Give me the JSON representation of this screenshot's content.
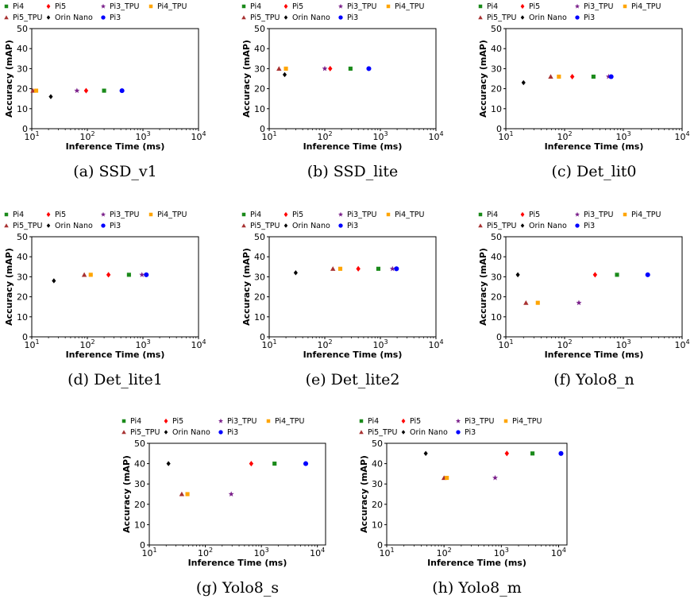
{
  "figure": {
    "legend_order": [
      "Pi4",
      "Pi5",
      "Pi3_TPU",
      "Pi4_TPU",
      "Pi5_TPU",
      "Orin Nano",
      "Pi3"
    ],
    "device_styles": {
      "Pi4": {
        "marker": "square",
        "color": "#1a8a1a"
      },
      "Pi5": {
        "marker": "diamond",
        "color": "#ff0000"
      },
      "Pi3_TPU": {
        "marker": "star",
        "color": "#7a1f8a"
      },
      "Pi4_TPU": {
        "marker": "square",
        "color": "#ffa500"
      },
      "Pi5_TPU": {
        "marker": "triangle",
        "color": "#a83232"
      },
      "Orin Nano": {
        "marker": "plus",
        "color": "#000000"
      },
      "Pi3": {
        "marker": "circle",
        "color": "#0000ff"
      }
    }
  },
  "chart_data": [
    {
      "type": "scatter",
      "caption": "(a) SSD_v1",
      "xlabel": "Inference Time (ms)",
      "ylabel": "Accuracy (mAP)",
      "xscale": "log",
      "xlim": [
        10,
        10000
      ],
      "ylim": [
        0,
        50
      ],
      "yticks": [
        0,
        10,
        20,
        30,
        40,
        50
      ],
      "xticks": [
        "10^1",
        "10^2",
        "10^3",
        "10^4"
      ],
      "grid": false,
      "legend": "top, above axes",
      "points": [
        {
          "series": "Pi5_TPU",
          "x": 10.5,
          "y": 19
        },
        {
          "series": "Pi4_TPU",
          "x": 12,
          "y": 19
        },
        {
          "series": "Orin Nano",
          "x": 22,
          "y": 16
        },
        {
          "series": "Pi3_TPU",
          "x": 65,
          "y": 19
        },
        {
          "series": "Pi5",
          "x": 95,
          "y": 19
        },
        {
          "series": "Pi4",
          "x": 200,
          "y": 19
        },
        {
          "series": "Pi3",
          "x": 420,
          "y": 19
        }
      ]
    },
    {
      "type": "scatter",
      "caption": "(b) SSD_lite",
      "xlabel": "Inference Time (ms)",
      "ylabel": "Accuracy (mAP)",
      "xscale": "log",
      "xlim": [
        10,
        10000
      ],
      "ylim": [
        0,
        50
      ],
      "yticks": [
        0,
        10,
        20,
        30,
        40,
        50
      ],
      "xticks": [
        "10^1",
        "10^2",
        "10^3",
        "10^4"
      ],
      "grid": false,
      "legend": "top, above axes",
      "points": [
        {
          "series": "Pi5_TPU",
          "x": 15,
          "y": 30
        },
        {
          "series": "Pi4_TPU",
          "x": 20,
          "y": 30
        },
        {
          "series": "Orin Nano",
          "x": 19,
          "y": 27
        },
        {
          "series": "Pi3_TPU",
          "x": 100,
          "y": 30
        },
        {
          "series": "Pi5",
          "x": 125,
          "y": 30
        },
        {
          "series": "Pi4",
          "x": 290,
          "y": 30
        },
        {
          "series": "Pi3",
          "x": 620,
          "y": 30
        }
      ]
    },
    {
      "type": "scatter",
      "caption": "(c) Det_lit0",
      "xlabel": "Inference Time (ms)",
      "ylabel": "Accuracy (mAP)",
      "xscale": "log",
      "xlim": [
        10,
        10000
      ],
      "ylim": [
        0,
        50
      ],
      "yticks": [
        0,
        10,
        20,
        30,
        40,
        50
      ],
      "xticks": [
        "10^1",
        "10^2",
        "10^3",
        "10^4"
      ],
      "grid": false,
      "legend": "top, above axes",
      "points": [
        {
          "series": "Orin Nano",
          "x": 20,
          "y": 23
        },
        {
          "series": "Pi5_TPU",
          "x": 58,
          "y": 26
        },
        {
          "series": "Pi4_TPU",
          "x": 80,
          "y": 26
        },
        {
          "series": "Pi5",
          "x": 135,
          "y": 26
        },
        {
          "series": "Pi4",
          "x": 310,
          "y": 26
        },
        {
          "series": "Pi3_TPU",
          "x": 560,
          "y": 26
        },
        {
          "series": "Pi3",
          "x": 620,
          "y": 26
        }
      ]
    },
    {
      "type": "scatter",
      "caption": "(d) Det_lite1",
      "xlabel": "Inference Time (ms)",
      "ylabel": "Accuracy (mAP)",
      "xscale": "log",
      "xlim": [
        10,
        10000
      ],
      "ylim": [
        0,
        50
      ],
      "yticks": [
        0,
        10,
        20,
        30,
        40,
        50
      ],
      "xticks": [
        "10^1",
        "10^2",
        "10^3",
        "10^4"
      ],
      "grid": false,
      "legend": "top, above axes",
      "points": [
        {
          "series": "Orin Nano",
          "x": 25,
          "y": 28
        },
        {
          "series": "Pi5_TPU",
          "x": 88,
          "y": 31
        },
        {
          "series": "Pi4_TPU",
          "x": 115,
          "y": 31
        },
        {
          "series": "Pi5",
          "x": 240,
          "y": 31
        },
        {
          "series": "Pi4",
          "x": 560,
          "y": 31
        },
        {
          "series": "Pi3_TPU",
          "x": 960,
          "y": 31
        },
        {
          "series": "Pi3",
          "x": 1150,
          "y": 31
        }
      ]
    },
    {
      "type": "scatter",
      "caption": "(e) Det_lite2",
      "xlabel": "Inference Time (ms)",
      "ylabel": "Accuracy (mAP)",
      "xscale": "log",
      "xlim": [
        10,
        10000
      ],
      "ylim": [
        0,
        50
      ],
      "yticks": [
        0,
        10,
        20,
        30,
        40,
        50
      ],
      "xticks": [
        "10^1",
        "10^2",
        "10^3",
        "10^4"
      ],
      "grid": false,
      "legend": "top, above axes",
      "points": [
        {
          "series": "Orin Nano",
          "x": 30,
          "y": 32
        },
        {
          "series": "Pi5_TPU",
          "x": 140,
          "y": 34
        },
        {
          "series": "Pi4_TPU",
          "x": 190,
          "y": 34
        },
        {
          "series": "Pi5",
          "x": 400,
          "y": 34
        },
        {
          "series": "Pi4",
          "x": 920,
          "y": 34
        },
        {
          "series": "Pi3_TPU",
          "x": 1650,
          "y": 34
        },
        {
          "series": "Pi3",
          "x": 1950,
          "y": 34
        }
      ]
    },
    {
      "type": "scatter",
      "caption": "(f) Yolo8_n",
      "xlabel": "Inference Time (ms)",
      "ylabel": "Accuracy (mAP)",
      "xscale": "log",
      "xlim": [
        10,
        10000
      ],
      "ylim": [
        0,
        50
      ],
      "yticks": [
        0,
        10,
        20,
        30,
        40,
        50
      ],
      "xticks": [
        "10^1",
        "10^2",
        "10^3",
        "10^4"
      ],
      "grid": false,
      "legend": "top, above axes",
      "points": [
        {
          "series": "Orin Nano",
          "x": 16,
          "y": 31
        },
        {
          "series": "Pi5_TPU",
          "x": 22,
          "y": 17
        },
        {
          "series": "Pi4_TPU",
          "x": 35,
          "y": 17
        },
        {
          "series": "Pi3_TPU",
          "x": 175,
          "y": 17
        },
        {
          "series": "Pi5",
          "x": 330,
          "y": 31
        },
        {
          "series": "Pi4",
          "x": 780,
          "y": 31
        },
        {
          "series": "Pi3",
          "x": 2600,
          "y": 31
        }
      ]
    },
    {
      "type": "scatter",
      "caption": "(g) Yolo8_s",
      "xlabel": "Inference Time (ms)",
      "ylabel": "Accuracy (mAP)",
      "xscale": "log",
      "xlim": [
        10,
        14000
      ],
      "ylim": [
        0,
        50
      ],
      "yticks": [
        0,
        10,
        20,
        30,
        40,
        50
      ],
      "xticks": [
        "10^1",
        "10^2",
        "10^3",
        "10^4"
      ],
      "grid": false,
      "legend": "top, above axes",
      "points": [
        {
          "series": "Orin Nano",
          "x": 22,
          "y": 40
        },
        {
          "series": "Pi5_TPU",
          "x": 38,
          "y": 25
        },
        {
          "series": "Pi4_TPU",
          "x": 48,
          "y": 25
        },
        {
          "series": "Pi3_TPU",
          "x": 290,
          "y": 25
        },
        {
          "series": "Pi5",
          "x": 660,
          "y": 40
        },
        {
          "series": "Pi4",
          "x": 1720,
          "y": 40
        },
        {
          "series": "Pi3",
          "x": 6200,
          "y": 40
        }
      ]
    },
    {
      "type": "scatter",
      "caption": "(h) Yolo8_m",
      "xlabel": "Inference Time (ms)",
      "ylabel": "Accuracy (mAP)",
      "xscale": "log",
      "xlim": [
        10,
        14000
      ],
      "ylim": [
        0,
        50
      ],
      "yticks": [
        0,
        10,
        20,
        30,
        40,
        50
      ],
      "xticks": [
        "10^1",
        "10^2",
        "10^3",
        "10^4"
      ],
      "grid": false,
      "legend": "top, above axes",
      "points": [
        {
          "series": "Orin Nano",
          "x": 48,
          "y": 45
        },
        {
          "series": "Pi5_TPU",
          "x": 100,
          "y": 33
        },
        {
          "series": "Pi4_TPU",
          "x": 112,
          "y": 33
        },
        {
          "series": "Pi3_TPU",
          "x": 780,
          "y": 33
        },
        {
          "series": "Pi5",
          "x": 1250,
          "y": 45
        },
        {
          "series": "Pi4",
          "x": 3500,
          "y": 45
        },
        {
          "series": "Pi3",
          "x": 11000,
          "y": 45
        }
      ]
    }
  ]
}
